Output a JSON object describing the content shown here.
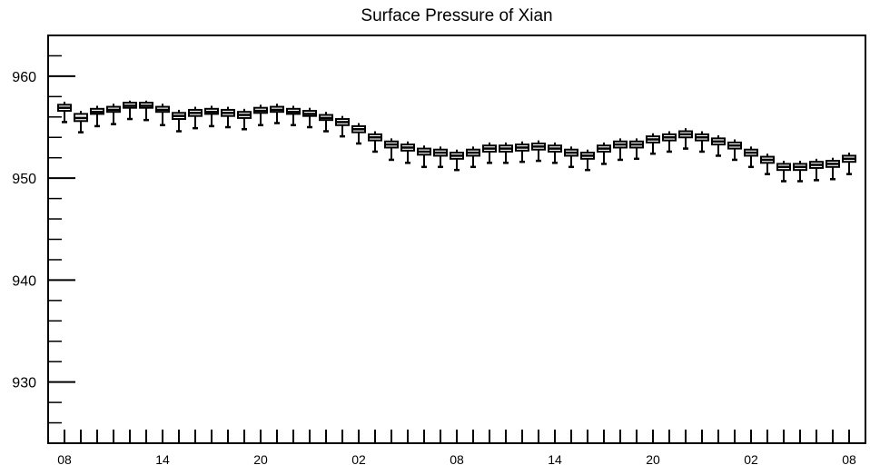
{
  "chart_data": {
    "type": "box",
    "title": "Surface Pressure of Xian",
    "xlabel": "",
    "ylabel": "",
    "ylim": [
      924,
      964
    ],
    "yticks": [
      930,
      940,
      950,
      960
    ],
    "xtick_labels": [
      "08",
      "14",
      "20",
      "02",
      "08",
      "14",
      "20",
      "02",
      "08"
    ],
    "xtick_label_steps": [
      0,
      6,
      12,
      18,
      24,
      30,
      36,
      42,
      48
    ],
    "grid": false,
    "legend": "none",
    "color": "#000000",
    "series": [
      {
        "medians": [
          956.9,
          955.9,
          956.5,
          956.7,
          957.1,
          957.1,
          956.7,
          956.1,
          956.4,
          956.5,
          956.4,
          956.2,
          956.6,
          956.7,
          956.5,
          956.3,
          955.9,
          955.5,
          954.8,
          954.0,
          953.3,
          953.0,
          952.6,
          952.5,
          952.2,
          952.5,
          952.9,
          952.9,
          953.0,
          953.1,
          952.9,
          952.5,
          952.2,
          952.9,
          953.3,
          953.3,
          953.8,
          954.0,
          954.3,
          954.0,
          953.6,
          953.2,
          952.5,
          951.8,
          951.1,
          951.1,
          951.3,
          951.4,
          951.9
        ],
        "q1": [
          956.6,
          955.6,
          956.3,
          956.5,
          956.9,
          956.9,
          956.5,
          955.8,
          956.1,
          956.3,
          956.1,
          955.9,
          956.4,
          956.5,
          956.3,
          956.1,
          955.7,
          955.2,
          954.5,
          953.7,
          953.0,
          952.7,
          952.3,
          952.2,
          951.9,
          952.2,
          952.6,
          952.6,
          952.7,
          952.8,
          952.6,
          952.2,
          951.9,
          952.6,
          953.0,
          953.0,
          953.5,
          953.7,
          954.0,
          953.7,
          953.3,
          952.9,
          952.2,
          951.5,
          950.8,
          950.8,
          951.0,
          951.1,
          951.6
        ],
        "q3": [
          957.2,
          956.3,
          956.8,
          957.0,
          957.4,
          957.4,
          957.0,
          956.4,
          956.7,
          956.8,
          956.7,
          956.5,
          956.9,
          957.0,
          956.8,
          956.6,
          956.2,
          955.8,
          955.1,
          954.3,
          953.6,
          953.3,
          952.9,
          952.8,
          952.5,
          952.8,
          953.2,
          953.2,
          953.3,
          953.4,
          953.2,
          952.8,
          952.5,
          953.2,
          953.6,
          953.6,
          954.1,
          954.3,
          954.6,
          954.3,
          953.9,
          953.5,
          952.8,
          952.1,
          951.4,
          951.4,
          951.6,
          951.7,
          952.2
        ],
        "whisker_low": [
          955.5,
          954.5,
          955.1,
          955.3,
          955.8,
          955.7,
          955.2,
          954.6,
          954.9,
          955.1,
          955.0,
          954.8,
          955.2,
          955.4,
          955.2,
          955.0,
          954.6,
          954.1,
          953.4,
          952.6,
          951.8,
          951.5,
          951.1,
          951.1,
          950.8,
          951.1,
          951.5,
          951.5,
          951.6,
          951.7,
          951.5,
          951.1,
          950.8,
          951.4,
          951.8,
          951.9,
          952.4,
          952.6,
          952.9,
          952.6,
          952.2,
          951.8,
          951.1,
          950.4,
          949.7,
          949.7,
          949.8,
          949.9,
          950.4
        ],
        "whisker_high": [
          957.5,
          956.6,
          957.1,
          957.3,
          957.6,
          957.6,
          957.3,
          956.7,
          957.0,
          957.1,
          957.0,
          956.8,
          957.2,
          957.3,
          957.1,
          956.9,
          956.5,
          956.1,
          955.4,
          954.6,
          953.9,
          953.6,
          953.2,
          953.1,
          952.8,
          953.1,
          953.5,
          953.5,
          953.6,
          953.7,
          953.5,
          953.1,
          952.8,
          953.5,
          953.9,
          953.9,
          954.4,
          954.6,
          954.9,
          954.6,
          954.2,
          953.8,
          953.1,
          952.4,
          951.7,
          951.7,
          951.9,
          952.0,
          952.5
        ]
      }
    ]
  }
}
